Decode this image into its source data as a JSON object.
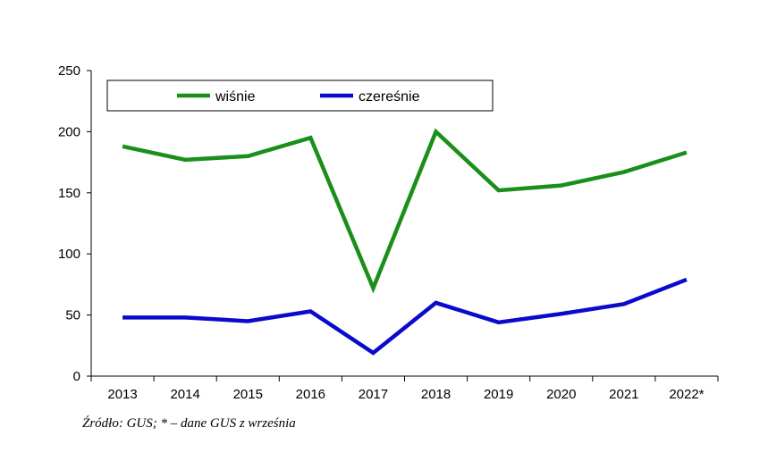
{
  "chart_data": {
    "type": "line",
    "title": "",
    "xlabel": "",
    "ylabel": "",
    "categories": [
      "2013",
      "2014",
      "2015",
      "2016",
      "2017",
      "2018",
      "2019",
      "2020",
      "2021",
      "2022*"
    ],
    "ylim": [
      0,
      250
    ],
    "yticks": [
      0,
      50,
      100,
      150,
      200,
      250
    ],
    "grid": false,
    "legend_position": "top-left",
    "series": [
      {
        "name": "wiśnie",
        "color": "#1a8f1a",
        "values": [
          188,
          177,
          180,
          195,
          72,
          200,
          152,
          156,
          167,
          183
        ]
      },
      {
        "name": "czereśnie",
        "color": "#0a0acc",
        "values": [
          48,
          48,
          45,
          53,
          19,
          60,
          44,
          51,
          59,
          79
        ]
      }
    ]
  },
  "source_note": "Źródło: GUS; * – dane GUS z września"
}
